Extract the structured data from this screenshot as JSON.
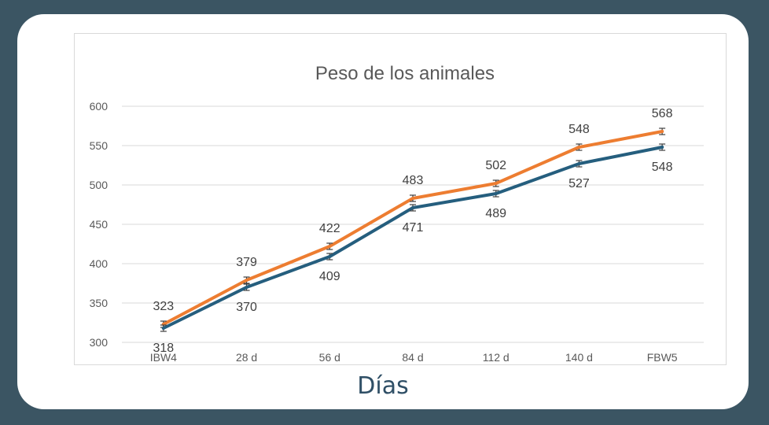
{
  "chart_data": {
    "type": "line",
    "title": "Peso de los  animales",
    "xlabel": "Días",
    "ylabel": "",
    "ylim": [
      300,
      600
    ],
    "yticks": [
      300,
      350,
      400,
      450,
      500,
      550,
      600
    ],
    "categories": [
      "IBW4",
      "28 d",
      "56 d",
      "84 d",
      "112 d",
      "140 d",
      "FBW5"
    ],
    "legend": "none",
    "grid": true,
    "series": [
      {
        "values": [
          323,
          379,
          422,
          483,
          502,
          548,
          568
        ],
        "color": "#ed7d31",
        "label_position": "above",
        "error": 4
      },
      {
        "values": [
          318,
          370,
          409,
          471,
          489,
          527,
          548
        ],
        "color": "#255e7e",
        "label_position": "below",
        "error": 4
      }
    ]
  }
}
